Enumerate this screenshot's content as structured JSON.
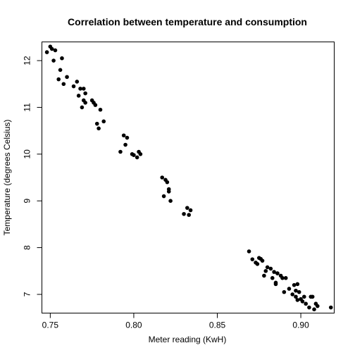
{
  "chart_data": {
    "type": "scatter",
    "title": "Correlation between temperature and consumption",
    "xlabel": "Meter reading (KwH)",
    "ylabel": "Temperature (degrees Celsius)",
    "xlim": [
      0.745,
      0.92
    ],
    "ylim": [
      6.6,
      12.4
    ],
    "xticks": [
      0.75,
      0.8,
      0.85,
      0.9
    ],
    "xtick_labels": [
      "0.75",
      "0.80",
      "0.85",
      "0.90"
    ],
    "yticks": [
      7,
      8,
      9,
      10,
      11,
      12
    ],
    "ytick_labels": [
      "7",
      "8",
      "9",
      "10",
      "11",
      "12"
    ],
    "grid": false,
    "legend": "none",
    "marker_color": "#000000",
    "x": [
      0.748,
      0.75,
      0.751,
      0.752,
      0.753,
      0.755,
      0.756,
      0.757,
      0.758,
      0.76,
      0.764,
      0.766,
      0.767,
      0.768,
      0.769,
      0.77,
      0.77,
      0.771,
      0.771,
      0.775,
      0.776,
      0.777,
      0.778,
      0.779,
      0.78,
      0.782,
      0.792,
      0.794,
      0.795,
      0.796,
      0.799,
      0.8,
      0.802,
      0.803,
      0.804,
      0.817,
      0.818,
      0.819,
      0.82,
      0.821,
      0.821,
      0.822,
      0.83,
      0.832,
      0.833,
      0.834,
      0.869,
      0.871,
      0.873,
      0.874,
      0.875,
      0.876,
      0.877,
      0.878,
      0.879,
      0.88,
      0.882,
      0.883,
      0.884,
      0.885,
      0.885,
      0.886,
      0.886,
      0.888,
      0.889,
      0.89,
      0.891,
      0.893,
      0.895,
      0.896,
      0.897,
      0.897,
      0.898,
      0.898,
      0.899,
      0.9,
      0.901,
      0.902,
      0.903,
      0.905,
      0.906,
      0.907,
      0.908,
      0.909,
      0.91,
      0.918
    ],
    "y": [
      12.18,
      12.3,
      12.25,
      12.0,
      12.22,
      11.6,
      11.8,
      12.05,
      11.5,
      11.65,
      11.45,
      11.55,
      11.25,
      11.4,
      11.0,
      11.4,
      11.15,
      11.1,
      11.3,
      11.15,
      11.1,
      11.05,
      10.65,
      10.55,
      10.95,
      10.7,
      10.05,
      10.4,
      10.2,
      10.35,
      10.0,
      9.98,
      9.93,
      10.05,
      10.0,
      9.5,
      9.1,
      9.45,
      9.4,
      9.2,
      9.25,
      9.0,
      8.72,
      8.85,
      8.7,
      8.8,
      7.92,
      7.75,
      7.68,
      7.65,
      7.78,
      7.76,
      7.72,
      7.4,
      7.5,
      7.58,
      7.55,
      7.35,
      7.48,
      7.22,
      7.25,
      7.45,
      7.45,
      7.4,
      7.35,
      7.05,
      7.35,
      7.12,
      7.0,
      7.2,
      6.95,
      7.08,
      7.22,
      6.88,
      7.05,
      6.9,
      6.85,
      6.95,
      6.8,
      6.72,
      6.95,
      6.95,
      6.68,
      6.8,
      6.75,
      6.72
    ]
  }
}
